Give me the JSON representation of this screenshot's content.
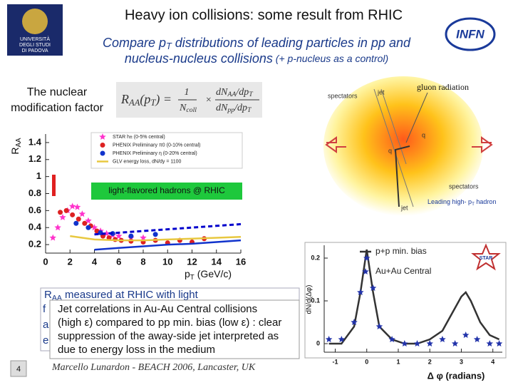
{
  "header": {
    "title": "Heavy ion collisions: some result from RHIC",
    "subtitle": {
      "line1_a": "Compare p",
      "line1_sub": "T",
      "line1_b": " distributions of leading particles in pp and",
      "line2_a": "nucleus-nucleus collisions",
      "line2_b": " (+ p-nucleus as a control)"
    }
  },
  "logos": {
    "left": [
      "UNIVERSITÀ",
      "DEGLI STUDI",
      "DI PADOVA"
    ],
    "right": "INFN"
  },
  "nuclear_label": [
    "The nuclear",
    "modification factor"
  ],
  "formula": {
    "lhs": "R",
    "lhs_sub": "AA",
    "lhs_arg": "(p",
    "lhs_arg_sub": "T",
    "lhs_end": ") =",
    "coef_num": "1",
    "coef_den": "N",
    "coef_den_sub": "coll",
    "times": "×",
    "num": "dN",
    "num_sub": "AA",
    "num_tail": "/dp",
    "num_tail_sub": "T",
    "den": "dN",
    "den_sub": "pp",
    "den_tail": "/dp",
    "den_tail_sub": "T"
  },
  "raa_plot": {
    "ylabel": "R",
    "ylabel_sub": "AA",
    "xlabel": "p",
    "xlabel_sub": "T",
    "xlabel_unit": "(GeV/c)",
    "label": "light-flavored hadrons @ RHIC",
    "xlim": [
      0,
      16
    ],
    "ylim": [
      0.1,
      1.5
    ],
    "xticks": [
      0,
      2,
      4,
      6,
      8,
      10,
      12,
      14,
      16
    ],
    "yticks": [
      0.2,
      0.4,
      0.6,
      0.8,
      1,
      1.2,
      1.4
    ],
    "series": [
      {
        "name": "STAR h± (0-5% central)",
        "color": "#ff33cc",
        "marker": "star",
        "x": [
          0.6,
          1,
          1.4,
          1.8,
          2.2,
          2.6,
          3,
          3.5,
          4,
          4.5,
          5,
          5.5,
          6,
          7,
          8
        ],
        "values": [
          0.28,
          0.4,
          0.52,
          0.6,
          0.65,
          0.64,
          0.56,
          0.48,
          0.4,
          0.36,
          0.33,
          0.31,
          0.3,
          0.28,
          0.28
        ]
      },
      {
        "name": "PHENIX Preliminary π0 (0-10% central)",
        "color": "#dd2222",
        "marker": "circle",
        "x": [
          1.2,
          1.7,
          2.2,
          2.7,
          3.2,
          3.7,
          4.2,
          4.7,
          5.2,
          5.7,
          6.2,
          7,
          8,
          9,
          10,
          11,
          12,
          13
        ],
        "values": [
          0.58,
          0.6,
          0.55,
          0.5,
          0.45,
          0.42,
          0.36,
          0.3,
          0.28,
          0.26,
          0.25,
          0.24,
          0.23,
          0.25,
          0.22,
          0.25,
          0.23,
          0.27
        ]
      },
      {
        "name": "PHENIX Preliminary η (0-20% central)",
        "color": "#1133cc",
        "marker": "circle",
        "x": [
          2.5,
          3.5,
          4.5,
          5.5,
          7,
          9
        ],
        "values": [
          0.45,
          0.4,
          0.34,
          0.33,
          0.3,
          0.32
        ]
      },
      {
        "name": "GLV energy loss, dN/dy = 1100",
        "color": "#e8c840",
        "line": "solid",
        "x": [
          2,
          4,
          6,
          8,
          10,
          12,
          14,
          16
        ],
        "values": [
          0.3,
          0.26,
          0.25,
          0.25,
          0.26,
          0.27,
          0.28,
          0.29
        ]
      },
      {
        "color": "#0000cc",
        "line": "dashed",
        "x": [
          4,
          6,
          8,
          10,
          12,
          14,
          16
        ],
        "values": [
          0.32,
          0.34,
          0.36,
          0.38,
          0.4,
          0.42,
          0.44
        ]
      },
      {
        "color": "#1133cc",
        "line": "solid",
        "x": [
          4,
          6,
          8,
          10,
          12,
          14,
          16
        ],
        "values": [
          0.14,
          0.16,
          0.18,
          0.2,
          0.21,
          0.23,
          0.25
        ]
      }
    ]
  },
  "diagram": {
    "jet_top": "jet",
    "spectators_top": "spectators",
    "gluon": "gluon radiation",
    "q1": "q",
    "q2": "q",
    "spectators_bottom": "spectators",
    "jet_bottom": "jet",
    "hadron_a": "Leading high- p",
    "hadron_sub": "T",
    "hadron_b": " hadron"
  },
  "dphi_plot": {
    "ylabel": "dN/d(Δφ)",
    "xlabel": "Δ φ (radians)",
    "logo": "STAR",
    "xlim": [
      -1.35,
      4.3
    ],
    "ylim": [
      -0.02,
      0.23
    ],
    "xticks": [
      -1,
      0,
      1,
      2,
      3,
      4
    ],
    "yticks": [
      0,
      0.1,
      0.2
    ],
    "series": [
      {
        "name": "p+p min. bias",
        "color": "#333333",
        "line": "solid",
        "x": [
          -1.2,
          -0.8,
          -0.4,
          -0.2,
          0,
          0.2,
          0.4,
          0.8,
          1.2,
          1.6,
          2.0,
          2.4,
          2.7,
          3.0,
          3.14,
          3.3,
          3.6,
          3.9,
          4.2
        ],
        "values": [
          0,
          0,
          0.04,
          0.12,
          0.22,
          0.12,
          0.04,
          0.01,
          0,
          0,
          0.01,
          0.03,
          0.07,
          0.11,
          0.12,
          0.1,
          0.05,
          0.02,
          0.01
        ]
      },
      {
        "name": "Au+Au Central",
        "color": "#2233aa",
        "marker": "star",
        "x": [
          -1.2,
          -0.8,
          -0.4,
          -0.2,
          0,
          0.2,
          0.4,
          0.8,
          1.2,
          1.6,
          2.0,
          2.4,
          2.8,
          3.14,
          3.5,
          3.9,
          4.2
        ],
        "values": [
          0.01,
          0.01,
          0.05,
          0.12,
          0.2,
          0.13,
          0.04,
          0.01,
          0,
          0,
          0,
          0.01,
          0,
          0.02,
          0.01,
          0,
          0
        ]
      }
    ]
  },
  "text_boxes": {
    "back": {
      "a": "R",
      "sub": "AA",
      "b": " measured at RHIC with light",
      "line2": "f",
      "line3": "a",
      "line4": "e"
    },
    "front": [
      "Jet correlations in Au-Au Central collisions",
      "(high ε) compared to pp min. bias (low ε) : clear",
      "suppression of the away-side jet interpreted as",
      "due to energy loss in the medium"
    ]
  },
  "footer": {
    "page": "4",
    "credit": "Marcello Lunardon - BEACH 2006, Lancaster, UK"
  }
}
